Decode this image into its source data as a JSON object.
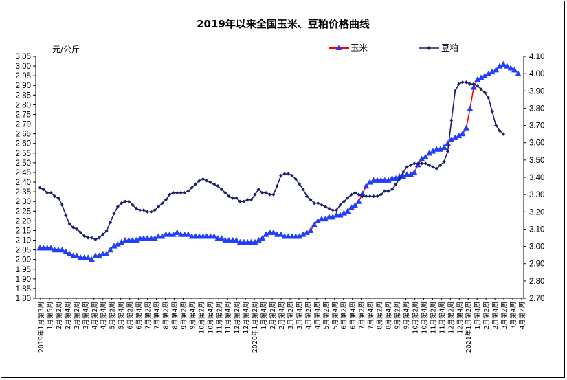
{
  "chart_data": {
    "type": "line",
    "title": "2019年以来全国玉米、豆粕价格曲线",
    "left_unit": "元/公斤",
    "y_left": {
      "min": 1.8,
      "max": 3.05,
      "step": 0.05
    },
    "y_right": {
      "min": 2.7,
      "max": 4.1,
      "step": 0.1
    },
    "grid": false,
    "legend_position": "top-right",
    "x_labels": [
      "2019年1月第3周",
      "1月第5周",
      "2月第2周",
      "2月第4周",
      "3月第2周",
      "3月第4周",
      "4月第2周",
      "4月第4周",
      "5月第2周",
      "5月第4周",
      "6月第2周",
      "6月第4周",
      "7月第2周",
      "7月第4周",
      "8月第2周",
      "8月第4周",
      "9月第2周",
      "9月第4周",
      "10月第2周",
      "10月第4周",
      "11月第2周",
      "11月第4周",
      "12月第2周",
      "12月第4周",
      "2020年1月第2周",
      "1月第4周",
      "2月第2周",
      "2月第4周",
      "3月第2周",
      "3月第4周",
      "4月第2周",
      "4月第4周",
      "5月第2周",
      "5月第4周",
      "6月第2周",
      "6月第4周",
      "7月第2周",
      "7月第4周",
      "8月第2周",
      "8月第4周",
      "9月第2周",
      "9月第4周",
      "10月第2周",
      "10月第4周",
      "11月第2周",
      "11月第4周",
      "12月第2周",
      "12月第4周",
      "2021年1月第2周",
      "1月第4周",
      "2月第2周",
      "2月第4周",
      "3月第2周",
      "3月第4周",
      "4月第2周"
    ],
    "series": [
      {
        "name": "玉米",
        "axis": "left",
        "color": "#ff0000",
        "marker_color": "#1f3fff",
        "marker": "triangle",
        "values": [
          2.06,
          2.06,
          2.06,
          2.06,
          2.05,
          2.05,
          2.05,
          2.04,
          2.03,
          2.02,
          2.02,
          2.01,
          2.01,
          2.01,
          2.0,
          2.02,
          2.02,
          2.03,
          2.03,
          2.05,
          2.07,
          2.08,
          2.09,
          2.1,
          2.1,
          2.1,
          2.1,
          2.11,
          2.11,
          2.11,
          2.11,
          2.11,
          2.12,
          2.12,
          2.13,
          2.13,
          2.13,
          2.14,
          2.13,
          2.13,
          2.13,
          2.12,
          2.12,
          2.12,
          2.12,
          2.12,
          2.12,
          2.12,
          2.11,
          2.11,
          2.1,
          2.1,
          2.1,
          2.1,
          2.09,
          2.09,
          2.09,
          2.09,
          2.09,
          2.1,
          2.11,
          2.13,
          2.14,
          2.14,
          2.13,
          2.13,
          2.12,
          2.12,
          2.12,
          2.12,
          2.12,
          2.13,
          2.14,
          2.15,
          2.18,
          2.2,
          2.21,
          2.21,
          2.22,
          2.22,
          2.23,
          2.23,
          2.24,
          2.25,
          2.27,
          2.28,
          2.3,
          2.34,
          2.38,
          2.4,
          2.41,
          2.41,
          2.41,
          2.41,
          2.41,
          2.42,
          2.42,
          2.43,
          2.43,
          2.44,
          2.44,
          2.45,
          2.49,
          2.52,
          2.53,
          2.55,
          2.56,
          2.57,
          2.57,
          2.58,
          2.6,
          2.62,
          2.63,
          2.64,
          2.65,
          2.68,
          2.78,
          2.89,
          2.93,
          2.94,
          2.95,
          2.96,
          2.97,
          2.98,
          3.0,
          3.01,
          3.0,
          2.99,
          2.98,
          2.96
        ]
      },
      {
        "name": "豆粕",
        "axis": "right",
        "color": "#1a1f6e",
        "marker": "diamond",
        "values": [
          3.34,
          3.33,
          3.31,
          3.31,
          3.29,
          3.28,
          3.24,
          3.18,
          3.13,
          3.11,
          3.1,
          3.08,
          3.06,
          3.05,
          3.05,
          3.04,
          3.05,
          3.07,
          3.09,
          3.14,
          3.19,
          3.23,
          3.25,
          3.26,
          3.26,
          3.24,
          3.22,
          3.21,
          3.21,
          3.2,
          3.2,
          3.21,
          3.23,
          3.25,
          3.27,
          3.3,
          3.31,
          3.31,
          3.31,
          3.31,
          3.32,
          3.34,
          3.36,
          3.38,
          3.39,
          3.38,
          3.37,
          3.36,
          3.35,
          3.33,
          3.31,
          3.29,
          3.28,
          3.28,
          3.26,
          3.26,
          3.27,
          3.27,
          3.3,
          3.33,
          3.31,
          3.31,
          3.3,
          3.3,
          3.35,
          3.41,
          3.42,
          3.42,
          3.41,
          3.39,
          3.36,
          3.33,
          3.29,
          3.27,
          3.25,
          3.25,
          3.24,
          3.23,
          3.22,
          3.21,
          3.21,
          3.24,
          3.26,
          3.28,
          3.3,
          3.31,
          3.3,
          3.29,
          3.29,
          3.29,
          3.29,
          3.29,
          3.3,
          3.32,
          3.32,
          3.33,
          3.36,
          3.39,
          3.43,
          3.46,
          3.47,
          3.48,
          3.48,
          3.48,
          3.48,
          3.47,
          3.46,
          3.45,
          3.47,
          3.49,
          3.55,
          3.73,
          3.9,
          3.94,
          3.95,
          3.95,
          3.94,
          3.94,
          3.93,
          3.91,
          3.89,
          3.86,
          3.78,
          3.7,
          3.67,
          3.65
        ]
      }
    ]
  }
}
